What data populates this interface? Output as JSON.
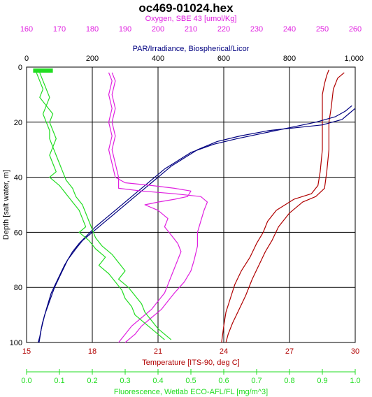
{
  "chart_data": {
    "type": "line",
    "title": "oc469-01024.hex",
    "colors": {
      "oxygen": "#e020e0",
      "par": "#000080",
      "temperature": "#b00000",
      "fluorescence": "#22dd22",
      "grid": "#000000"
    },
    "y_axis": {
      "label": "Depth [salt water, m]",
      "range": [
        0,
        100
      ],
      "ticks": [
        "0",
        "20",
        "40",
        "60",
        "80",
        "100"
      ],
      "inverted": true
    },
    "x_axes": [
      {
        "key": "oxygen",
        "label": "Oxygen, SBE 43 [umol/Kg]",
        "position": "top-outer",
        "range": [
          160,
          260
        ],
        "ticks": [
          "160",
          "170",
          "180",
          "190",
          "200",
          "210",
          "220",
          "230",
          "240",
          "250",
          "260"
        ]
      },
      {
        "key": "par",
        "label": "PAR/Irradiance, Biospherical/Licor",
        "position": "top-inner",
        "range": [
          0,
          1000
        ],
        "ticks": [
          "0",
          "200",
          "400",
          "600",
          "800",
          "1,000"
        ]
      },
      {
        "key": "temperature",
        "label": "Temperature [ITS-90, deg C]",
        "position": "bottom-inner",
        "range": [
          15,
          30
        ],
        "ticks": [
          "15",
          "18",
          "21",
          "24",
          "27",
          "30"
        ]
      },
      {
        "key": "fluorescence",
        "label": "Fluorescence, Wetlab ECO-AFL/FL [mg/m^3]",
        "position": "bottom-outer",
        "range": [
          0,
          1
        ],
        "ticks": [
          "0.0",
          "0.1",
          "0.2",
          "0.3",
          "0.4",
          "0.5",
          "0.6",
          "0.7",
          "0.8",
          "0.9",
          "1.0"
        ]
      }
    ],
    "grid": true,
    "series": [
      {
        "axis": "temperature",
        "points": [
          [
            28.8,
            1
          ],
          [
            28.7,
            3
          ],
          [
            28.6,
            6
          ],
          [
            28.5,
            10
          ],
          [
            28.5,
            15
          ],
          [
            28.5,
            20
          ],
          [
            28.5,
            30
          ],
          [
            28.4,
            38
          ],
          [
            28.3,
            43
          ],
          [
            28.0,
            46
          ],
          [
            27.2,
            48
          ],
          [
            26.4,
            52
          ],
          [
            26.0,
            56
          ],
          [
            25.8,
            60
          ],
          [
            25.5,
            64
          ],
          [
            25.2,
            69
          ],
          [
            24.8,
            74
          ],
          [
            24.5,
            79
          ],
          [
            24.3,
            84
          ],
          [
            24.1,
            89
          ],
          [
            24.0,
            94
          ],
          [
            23.9,
            100
          ]
        ]
      },
      {
        "axis": "temperature",
        "points": [
          [
            29.5,
            2
          ],
          [
            29.2,
            4
          ],
          [
            29.0,
            8
          ],
          [
            28.9,
            15
          ],
          [
            28.8,
            20
          ],
          [
            28.8,
            30
          ],
          [
            28.7,
            38
          ],
          [
            28.6,
            44
          ],
          [
            28.2,
            47
          ],
          [
            27.6,
            49
          ],
          [
            27.0,
            53
          ],
          [
            26.5,
            58
          ],
          [
            26.2,
            63
          ],
          [
            25.9,
            67
          ],
          [
            25.6,
            72
          ],
          [
            25.3,
            77
          ],
          [
            25.0,
            83
          ],
          [
            24.7,
            88
          ],
          [
            24.4,
            93
          ],
          [
            24.2,
            97
          ],
          [
            24.1,
            100
          ]
        ]
      },
      {
        "axis": "par",
        "points": [
          [
            1000,
            15
          ],
          [
            980,
            17
          ],
          [
            960,
            19
          ],
          [
            900,
            21
          ],
          [
            820,
            22
          ],
          [
            740,
            23
          ],
          [
            650,
            25
          ],
          [
            580,
            27
          ],
          [
            520,
            30
          ],
          [
            480,
            33
          ],
          [
            440,
            36
          ],
          [
            410,
            39
          ],
          [
            380,
            42
          ],
          [
            350,
            45
          ],
          [
            320,
            48
          ],
          [
            290,
            51
          ],
          [
            260,
            54
          ],
          [
            230,
            57
          ],
          [
            200,
            60
          ],
          [
            170,
            63
          ],
          [
            150,
            66
          ],
          [
            125,
            70
          ],
          [
            105,
            75
          ],
          [
            85,
            80
          ],
          [
            70,
            85
          ],
          [
            55,
            90
          ],
          [
            45,
            95
          ],
          [
            38,
            100
          ]
        ]
      },
      {
        "axis": "par",
        "points": [
          [
            990,
            14
          ],
          [
            970,
            16
          ],
          [
            940,
            18
          ],
          [
            880,
            20
          ],
          [
            800,
            22
          ],
          [
            720,
            24
          ],
          [
            640,
            26
          ],
          [
            570,
            28
          ],
          [
            500,
            31
          ],
          [
            460,
            34
          ],
          [
            420,
            37
          ],
          [
            390,
            40
          ],
          [
            360,
            43
          ],
          [
            330,
            46
          ],
          [
            300,
            49
          ],
          [
            270,
            52
          ],
          [
            240,
            55
          ],
          [
            210,
            58
          ],
          [
            185,
            61
          ],
          [
            160,
            64
          ],
          [
            140,
            67
          ],
          [
            115,
            72
          ],
          [
            95,
            77
          ],
          [
            75,
            82
          ],
          [
            60,
            88
          ],
          [
            48,
            93
          ],
          [
            40,
            98
          ],
          [
            35,
            100
          ]
        ]
      },
      {
        "axis": "oxygen",
        "points": [
          [
            185,
            2
          ],
          [
            186,
            5
          ],
          [
            185,
            10
          ],
          [
            186,
            15
          ],
          [
            185,
            20
          ],
          [
            186,
            25
          ],
          [
            185,
            30
          ],
          [
            186,
            35
          ],
          [
            187,
            40
          ],
          [
            190,
            42
          ],
          [
            198,
            43
          ],
          [
            205,
            44
          ],
          [
            210,
            45
          ],
          [
            209,
            47
          ],
          [
            205,
            48
          ],
          [
            200,
            49
          ],
          [
            196,
            50
          ],
          [
            200,
            52
          ],
          [
            203,
            55
          ],
          [
            202,
            58
          ],
          [
            204,
            61
          ],
          [
            206,
            64
          ],
          [
            207,
            67
          ],
          [
            206,
            70
          ],
          [
            205,
            73
          ],
          [
            204,
            76
          ],
          [
            203,
            79
          ],
          [
            202,
            82
          ],
          [
            200,
            85
          ],
          [
            198,
            88
          ],
          [
            195,
            91
          ],
          [
            192,
            94
          ],
          [
            190,
            97
          ],
          [
            188,
            100
          ]
        ]
      },
      {
        "axis": "oxygen",
        "points": [
          [
            186,
            2
          ],
          [
            187,
            5
          ],
          [
            186,
            10
          ],
          [
            187,
            15
          ],
          [
            186,
            20
          ],
          [
            187,
            25
          ],
          [
            186,
            30
          ],
          [
            187,
            35
          ],
          [
            188,
            40
          ],
          [
            188,
            44
          ],
          [
            195,
            45
          ],
          [
            205,
            46
          ],
          [
            213,
            47
          ],
          [
            215,
            49
          ],
          [
            214,
            52
          ],
          [
            213,
            56
          ],
          [
            212,
            60
          ],
          [
            212,
            65
          ],
          [
            211,
            70
          ],
          [
            210,
            74
          ],
          [
            208,
            78
          ],
          [
            205,
            82
          ],
          [
            203,
            85
          ],
          [
            201,
            88
          ],
          [
            198,
            91
          ],
          [
            195,
            94
          ],
          [
            193,
            97
          ],
          [
            190,
            100
          ]
        ]
      },
      {
        "axis": "fluorescence",
        "points": [
          [
            0.03,
            2
          ],
          [
            0.04,
            5
          ],
          [
            0.05,
            8
          ],
          [
            0.04,
            11
          ],
          [
            0.06,
            14
          ],
          [
            0.05,
            17
          ],
          [
            0.06,
            20
          ],
          [
            0.07,
            23
          ],
          [
            0.07,
            26
          ],
          [
            0.08,
            29
          ],
          [
            0.07,
            32
          ],
          [
            0.08,
            35
          ],
          [
            0.09,
            38
          ],
          [
            0.07,
            40
          ],
          [
            0.1,
            43
          ],
          [
            0.12,
            46
          ],
          [
            0.14,
            49
          ],
          [
            0.16,
            52
          ],
          [
            0.17,
            55
          ],
          [
            0.18,
            58
          ],
          [
            0.16,
            60
          ],
          [
            0.19,
            63
          ],
          [
            0.21,
            66
          ],
          [
            0.24,
            69
          ],
          [
            0.22,
            72
          ],
          [
            0.25,
            75
          ],
          [
            0.27,
            78
          ],
          [
            0.29,
            81
          ],
          [
            0.3,
            84
          ],
          [
            0.32,
            87
          ],
          [
            0.33,
            90
          ],
          [
            0.36,
            93
          ],
          [
            0.39,
            96
          ],
          [
            0.42,
            99
          ]
        ]
      },
      {
        "axis": "fluorescence",
        "points": [
          [
            0.04,
            2
          ],
          [
            0.05,
            5
          ],
          [
            0.06,
            8
          ],
          [
            0.07,
            11
          ],
          [
            0.06,
            14
          ],
          [
            0.08,
            17
          ],
          [
            0.07,
            20
          ],
          [
            0.08,
            23
          ],
          [
            0.09,
            26
          ],
          [
            0.08,
            29
          ],
          [
            0.09,
            32
          ],
          [
            0.1,
            35
          ],
          [
            0.11,
            38
          ],
          [
            0.12,
            41
          ],
          [
            0.14,
            44
          ],
          [
            0.15,
            47
          ],
          [
            0.17,
            50
          ],
          [
            0.18,
            53
          ],
          [
            0.19,
            56
          ],
          [
            0.2,
            59
          ],
          [
            0.21,
            62
          ],
          [
            0.23,
            65
          ],
          [
            0.26,
            68
          ],
          [
            0.28,
            71
          ],
          [
            0.3,
            74
          ],
          [
            0.28,
            77
          ],
          [
            0.31,
            80
          ],
          [
            0.33,
            83
          ],
          [
            0.35,
            86
          ],
          [
            0.36,
            89
          ],
          [
            0.38,
            92
          ],
          [
            0.4,
            95
          ],
          [
            0.44,
            99
          ]
        ]
      }
    ]
  }
}
